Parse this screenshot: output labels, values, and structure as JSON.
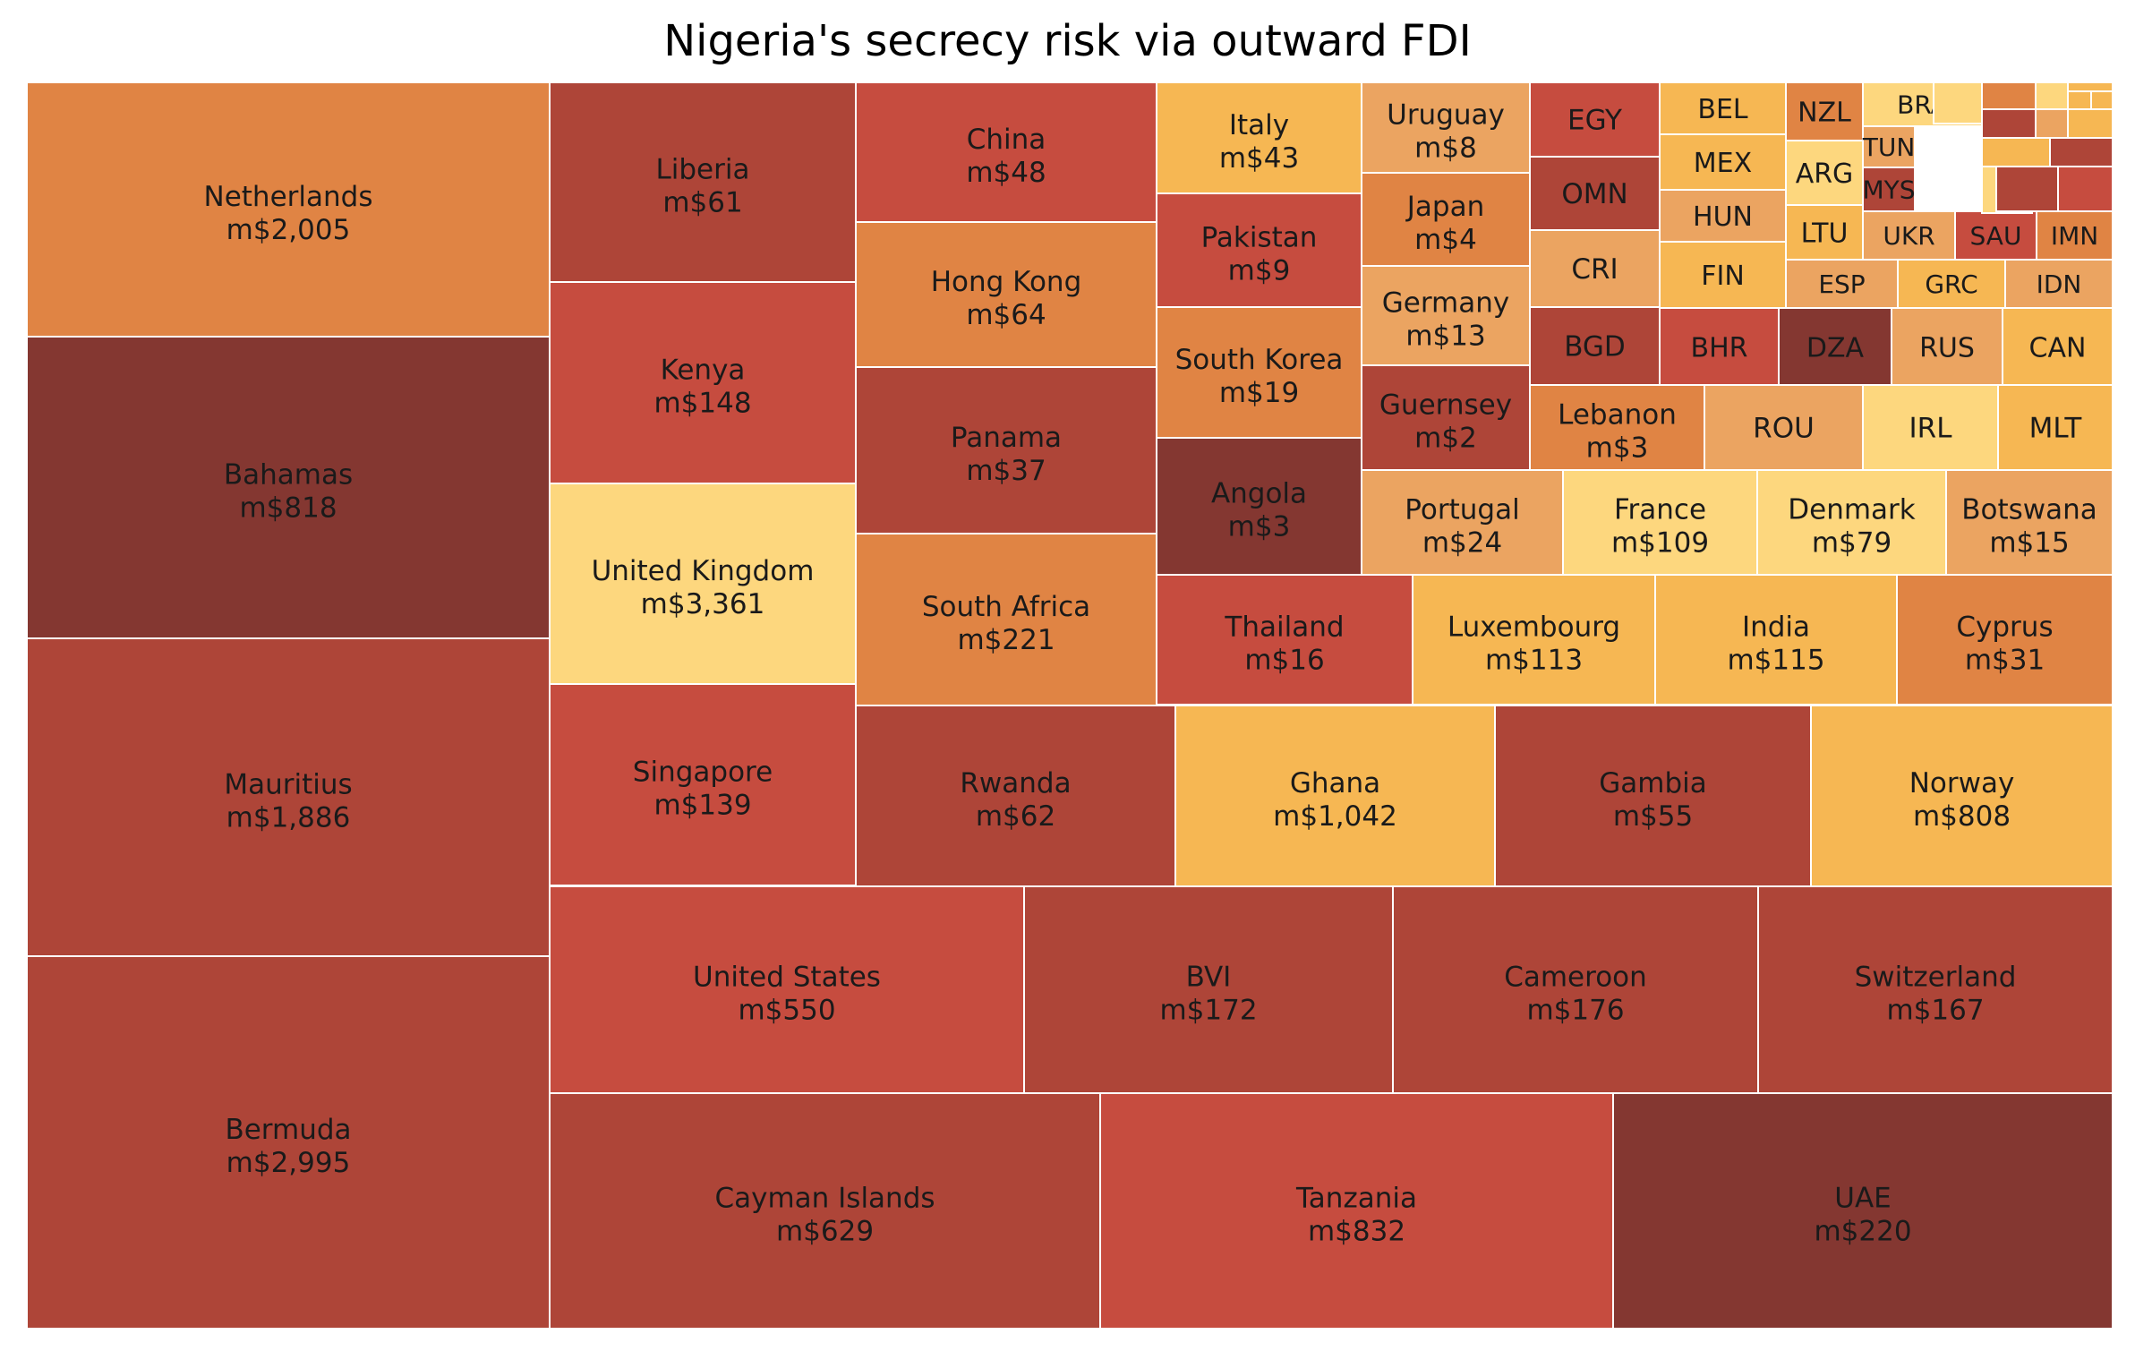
{
  "chart_data": {
    "type": "treemap",
    "title": "Nigeria's secrecy risk via outward FDI",
    "unit_prefix": "m$",
    "palette": {
      "darkbrown": "#843731",
      "brown": "#ae4538",
      "red": "#c64c3f",
      "orange": "#e08444",
      "lightorange": "#eba461",
      "gold": "#f6b753",
      "yellow": "#fdd77e"
    },
    "items": [
      {
        "label": "Netherlands",
        "value": "m$2,005",
        "color": "orange"
      },
      {
        "label": "Bahamas",
        "value": "m$818",
        "color": "darkbrown"
      },
      {
        "label": "Mauritius",
        "value": "m$1,886",
        "color": "brown"
      },
      {
        "label": "Bermuda",
        "value": "m$2,995",
        "color": "brown"
      },
      {
        "label": "Liberia",
        "value": "m$61",
        "color": "brown"
      },
      {
        "label": "Kenya",
        "value": "m$148",
        "color": "red"
      },
      {
        "label": "United Kingdom",
        "value": "m$3,361",
        "color": "yellow"
      },
      {
        "label": "Singapore",
        "value": "m$139",
        "color": "red"
      },
      {
        "label": "China",
        "value": "m$48",
        "color": "red"
      },
      {
        "label": "Hong Kong",
        "value": "m$64",
        "color": "orange"
      },
      {
        "label": "Panama",
        "value": "m$37",
        "color": "brown"
      },
      {
        "label": "South Africa",
        "value": "m$221",
        "color": "orange"
      },
      {
        "label": "Italy",
        "value": "m$43",
        "color": "gold"
      },
      {
        "label": "Pakistan",
        "value": "m$9",
        "color": "red"
      },
      {
        "label": "South Korea",
        "value": "m$19",
        "color": "orange"
      },
      {
        "label": "Angola",
        "value": "m$3",
        "color": "darkbrown"
      },
      {
        "label": "Uruguay",
        "value": "m$8",
        "color": "lightorange"
      },
      {
        "label": "Japan",
        "value": "m$4",
        "color": "orange"
      },
      {
        "label": "Germany",
        "value": "m$13",
        "color": "lightorange"
      },
      {
        "label": "Guernsey",
        "value": "m$2",
        "color": "brown"
      },
      {
        "label": "EGY",
        "color": "red"
      },
      {
        "label": "OMN",
        "color": "brown"
      },
      {
        "label": "CRI",
        "color": "lightorange"
      },
      {
        "label": "BGD",
        "color": "brown"
      },
      {
        "label": "BEL",
        "color": "gold"
      },
      {
        "label": "MEX",
        "color": "gold"
      },
      {
        "label": "HUN",
        "color": "lightorange"
      },
      {
        "label": "FIN",
        "color": "gold"
      },
      {
        "label": "NZL",
        "color": "orange"
      },
      {
        "label": "ARG",
        "color": "yellow"
      },
      {
        "label": "LTU",
        "color": "gold"
      },
      {
        "label": "BRA",
        "color": "yellow"
      },
      {
        "label": "TUN",
        "color": "lightorange"
      },
      {
        "label": "MYS",
        "color": "brown"
      },
      {
        "label": "UKR",
        "color": "lightorange"
      },
      {
        "label": "SAU",
        "color": "red"
      },
      {
        "label": "IMN",
        "color": "orange"
      },
      {
        "label": "ESP",
        "color": "lightorange"
      },
      {
        "label": "GRC",
        "color": "gold"
      },
      {
        "label": "IDN",
        "color": "lightorange"
      },
      {
        "label": "BHR",
        "color": "red"
      },
      {
        "label": "DZA",
        "color": "darkbrown"
      },
      {
        "label": "RUS",
        "color": "lightorange"
      },
      {
        "label": "CAN",
        "color": "gold"
      },
      {
        "label": "Lebanon",
        "value": "m$3",
        "color": "orange"
      },
      {
        "label": "ROU",
        "color": "lightorange"
      },
      {
        "label": "IRL",
        "color": "yellow"
      },
      {
        "label": "MLT",
        "color": "gold"
      },
      {
        "label": "Portugal",
        "value": "m$24",
        "color": "lightorange"
      },
      {
        "label": "France",
        "value": "m$109",
        "color": "yellow"
      },
      {
        "label": "Denmark",
        "value": "m$79",
        "color": "yellow"
      },
      {
        "label": "Botswana",
        "value": "m$15",
        "color": "lightorange"
      },
      {
        "label": "Thailand",
        "value": "m$16",
        "color": "red"
      },
      {
        "label": "Luxembourg",
        "value": "m$113",
        "color": "gold"
      },
      {
        "label": "India",
        "value": "m$115",
        "color": "gold"
      },
      {
        "label": "Cyprus",
        "value": "m$31",
        "color": "orange"
      },
      {
        "label": "Rwanda",
        "value": "m$62",
        "color": "brown"
      },
      {
        "label": "Ghana",
        "value": "m$1,042",
        "color": "gold"
      },
      {
        "label": "Gambia",
        "value": "m$55",
        "color": "brown"
      },
      {
        "label": "Norway",
        "value": "m$808",
        "color": "gold"
      },
      {
        "label": "United States",
        "value": "m$550",
        "color": "red"
      },
      {
        "label": "BVI",
        "value": "m$172",
        "color": "brown"
      },
      {
        "label": "Cameroon",
        "value": "m$176",
        "color": "brown"
      },
      {
        "label": "Switzerland",
        "value": "m$167",
        "color": "brown"
      },
      {
        "label": "Cayman Islands",
        "value": "m$629",
        "color": "brown"
      },
      {
        "label": "Tanzania",
        "value": "m$832",
        "color": "red"
      },
      {
        "label": "UAE",
        "value": "m$220",
        "color": "darkbrown"
      },
      {
        "label": "",
        "color": "yellow"
      },
      {
        "label": "",
        "color": "lightorange"
      },
      {
        "label": "",
        "color": "yellow"
      },
      {
        "label": "",
        "color": "brown"
      },
      {
        "label": "",
        "color": "red"
      },
      {
        "label": "",
        "color": "orange"
      },
      {
        "label": "",
        "color": "yellow"
      },
      {
        "label": "",
        "color": "gold"
      },
      {
        "label": "",
        "color": "gold"
      },
      {
        "label": "",
        "color": "brown"
      },
      {
        "label": "",
        "color": "lightorange"
      },
      {
        "label": "",
        "color": "gold"
      },
      {
        "label": "",
        "color": "gold"
      },
      {
        "label": "",
        "color": "brown"
      },
      {
        "label": "",
        "color": "gold"
      }
    ]
  }
}
